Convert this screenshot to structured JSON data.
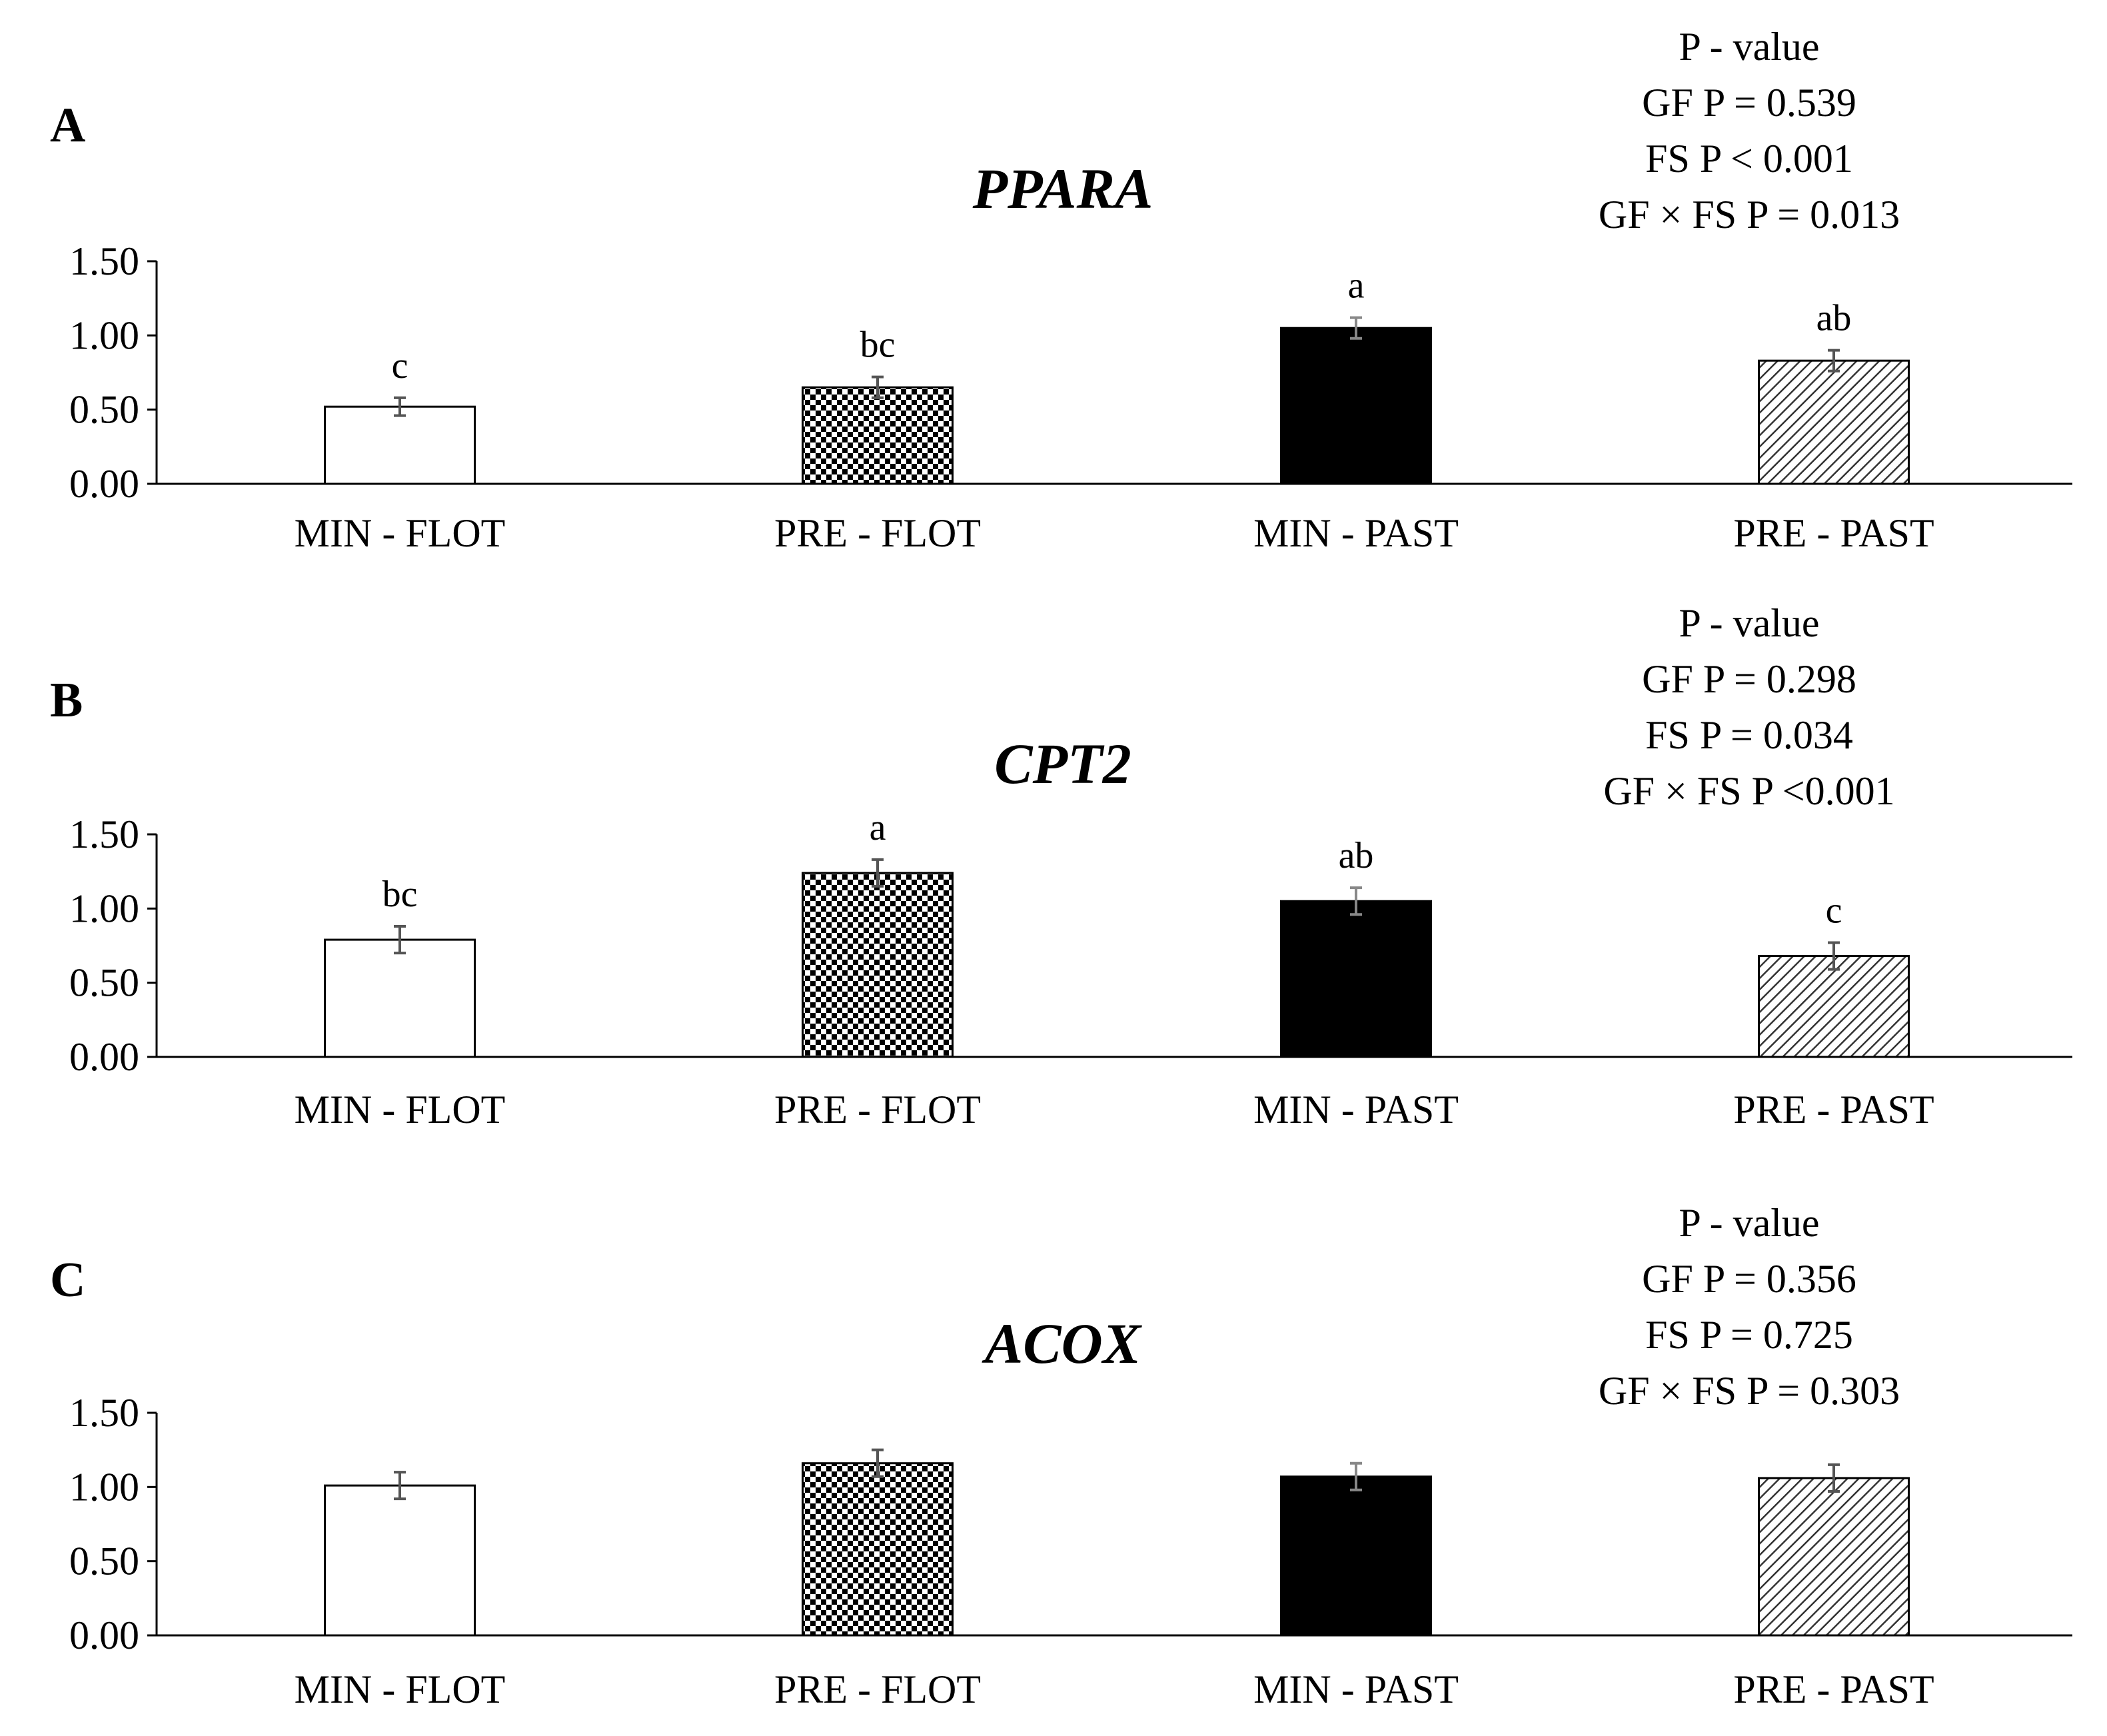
{
  "chart_data": [
    {
      "type": "bar",
      "panel": "A",
      "title": "PPARA",
      "categories": [
        "MIN - FLOT",
        "PRE  - FLOT",
        "MIN - PAST",
        "PRE  - PAST"
      ],
      "values": [
        0.52,
        0.65,
        1.05,
        0.83
      ],
      "errors": [
        0.06,
        0.07,
        0.07,
        0.07
      ],
      "significance": [
        "c",
        "bc",
        "a",
        "ab"
      ],
      "yticks": [
        "0.00",
        "0.50",
        "1.00",
        "1.50"
      ],
      "ylim": [
        0,
        1.5
      ],
      "pvalues": [
        "P - value",
        "GF P = 0.539",
        "FS P < 0.001",
        "GF × FS P = 0.013"
      ]
    },
    {
      "type": "bar",
      "panel": "B",
      "title": "CPT2",
      "categories": [
        "MIN - FLOT",
        "PRE  - FLOT",
        "MIN - PAST",
        "PRE  - PAST"
      ],
      "values": [
        0.79,
        1.24,
        1.05,
        0.68
      ],
      "errors": [
        0.09,
        0.09,
        0.09,
        0.09
      ],
      "significance": [
        "bc",
        "a",
        "ab",
        "c"
      ],
      "yticks": [
        "0.00",
        "0.50",
        "1.00",
        "1.50"
      ],
      "ylim": [
        0,
        1.5
      ],
      "pvalues": [
        "P - value",
        "GF P = 0.298",
        "FS P = 0.034",
        "GF × FS P <0.001"
      ]
    },
    {
      "type": "bar",
      "panel": "C",
      "title": "ACOX",
      "categories": [
        "MIN - FLOT",
        "PRE  - FLOT",
        "MIN - PAST",
        "PRE  - PAST"
      ],
      "values": [
        1.01,
        1.16,
        1.07,
        1.06
      ],
      "errors": [
        0.09,
        0.09,
        0.09,
        0.09
      ],
      "significance": [
        "",
        "",
        "",
        ""
      ],
      "yticks": [
        "0.00",
        "0.50",
        "1.00",
        "1.50"
      ],
      "ylim": [
        0,
        1.5
      ],
      "pvalues": [
        "P - value",
        "GF P = 0.356",
        "FS P = 0.725",
        "GF × FS P = 0.303"
      ]
    }
  ],
  "bar_styles": [
    "open",
    "checkered",
    "solid",
    "hatched"
  ]
}
